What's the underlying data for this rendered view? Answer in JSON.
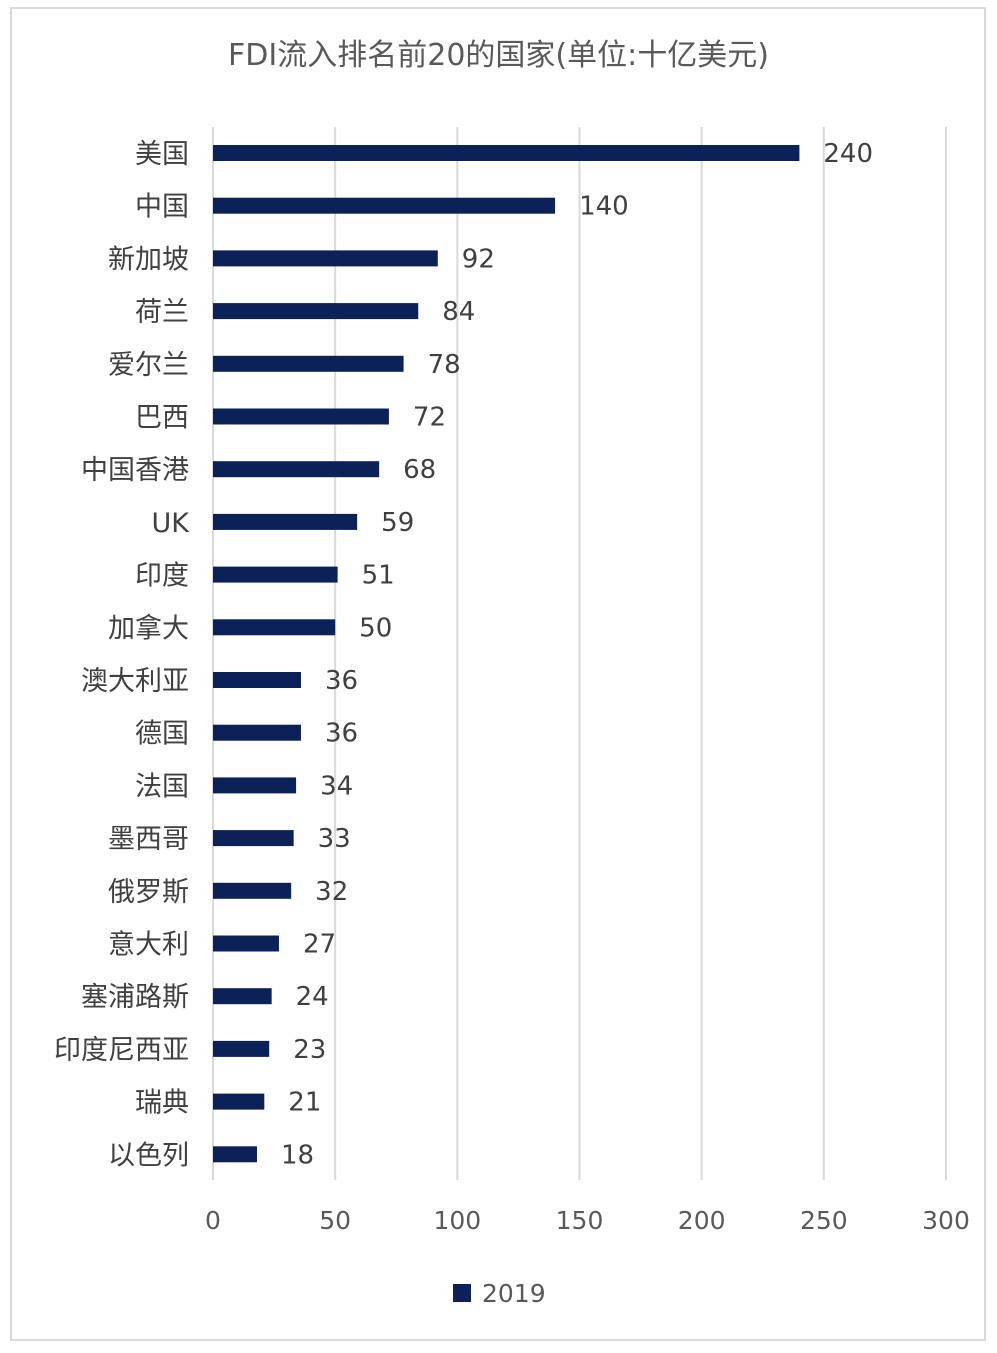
{
  "chart_data": {
    "type": "bar",
    "orientation": "horizontal",
    "title": "FDI流入排名前20的国家(单位:十亿美元)",
    "categories": [
      "美国",
      "中国",
      "新加坡",
      "荷兰",
      "爱尔兰",
      "巴西",
      "中国香港",
      "UK",
      "印度",
      "加拿大",
      "澳大利亚",
      "德国",
      "法国",
      "墨西哥",
      "俄罗斯",
      "意大利",
      "塞浦路斯",
      "印度尼西亚",
      "瑞典",
      "以色列"
    ],
    "series": [
      {
        "name": "2019",
        "values": [
          240,
          140,
          92,
          84,
          78,
          72,
          68,
          59,
          51,
          50,
          36,
          36,
          34,
          33,
          32,
          27,
          24,
          23,
          21,
          18
        ]
      }
    ],
    "xlim": [
      0,
      300
    ],
    "xticks": [
      0,
      50,
      100,
      150,
      200,
      250,
      300
    ],
    "grid": true,
    "legend_position": "bottom",
    "bar_color": "#0d2159"
  }
}
